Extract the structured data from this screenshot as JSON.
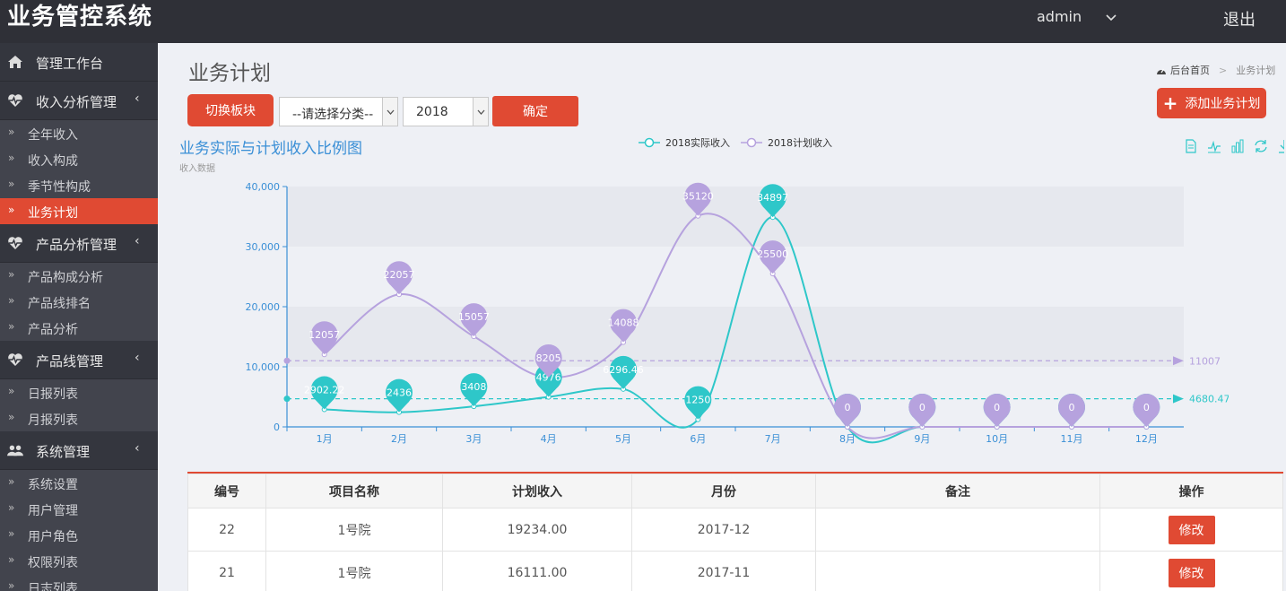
{
  "header": {
    "app_title": "业务管控系统",
    "user": "admin",
    "logout": "退出"
  },
  "sidebar": {
    "groups": [
      {
        "label": "管理工作台",
        "icon": "home-icon",
        "arrow": "",
        "items": []
      },
      {
        "label": "收入分析管理",
        "icon": "heartbeat-icon",
        "arrow": "‹",
        "items": [
          "全年收入",
          "收入构成",
          "季节性构成",
          "业务计划"
        ]
      },
      {
        "label": "产品分析管理",
        "icon": "heartbeat-icon",
        "arrow": "‹",
        "items": [
          "产品构成分析",
          "产品线排名",
          "产品分析"
        ]
      },
      {
        "label": "产品线管理",
        "icon": "heartbeat-icon",
        "arrow": "‹",
        "items": [
          "日报列表",
          "月报列表"
        ]
      },
      {
        "label": "系统管理",
        "icon": "users-icon",
        "arrow": "‹",
        "items": [
          "系统设置",
          "用户管理",
          "用户角色",
          "权限列表",
          "日志列表"
        ]
      }
    ],
    "active_item": "业务计划"
  },
  "page": {
    "title": "业务计划",
    "breadcrumb_home": "后台首页",
    "breadcrumb_sep": ">",
    "breadcrumb_current": "业务计划"
  },
  "toolbar": {
    "switch_label": "切换板块",
    "category_value": "--请选择分类--",
    "year_value": "2018",
    "confirm_label": "确定",
    "add_label": "添加业务计划"
  },
  "chart_data": {
    "type": "line",
    "title": "业务实际与计划收入比例图",
    "subtitle": "收入数据",
    "categories": [
      "1月",
      "2月",
      "3月",
      "4月",
      "5月",
      "6月",
      "7月",
      "8月",
      "9月",
      "10月",
      "11月",
      "12月"
    ],
    "series": [
      {
        "name": "2018实际收入",
        "color": "#2ec7c9",
        "values": [
          2902.22,
          2436,
          3408,
          4976,
          6296.46,
          1250,
          34897,
          0,
          0,
          0,
          0,
          0
        ],
        "average": 4680.47,
        "average_label": "4680.47",
        "labels": [
          "2902.22",
          "2436",
          "3408",
          "4976",
          "6296.46",
          "1250",
          "34897",
          "0",
          "0",
          "0",
          "0",
          "0"
        ]
      },
      {
        "name": "2018计划收入",
        "color": "#b6a2de",
        "values": [
          12057,
          22057,
          15057,
          8205,
          14088,
          35120,
          25500,
          0,
          0,
          0,
          0,
          0
        ],
        "average": 11007,
        "average_label": "11007",
        "labels": [
          "12057",
          "22057",
          "15057",
          "8205",
          "14088",
          "35120",
          "25500",
          "0",
          "0",
          "0",
          "0",
          "0"
        ]
      }
    ],
    "yticks": [
      "0",
      "10,000",
      "20,000",
      "30,000",
      "40,000"
    ],
    "ylim": [
      0,
      40000
    ],
    "legend_position": "top-center",
    "grid": "alternating-bands"
  },
  "table": {
    "headers": [
      "编号",
      "项目名称",
      "计划收入",
      "月份",
      "备注",
      "操作"
    ],
    "rows": [
      {
        "id": "22",
        "name": "1号院",
        "plan": "19234.00",
        "month": "2017-12",
        "note": "",
        "action": "修改"
      },
      {
        "id": "21",
        "name": "1号院",
        "plan": "16111.00",
        "month": "2017-11",
        "note": "",
        "action": "修改"
      }
    ]
  },
  "colors": {
    "accent": "#e04a33",
    "header_bg": "#2f3037",
    "sidebar_bg": "#3a3c45",
    "chart_title": "#3a8fd6"
  }
}
